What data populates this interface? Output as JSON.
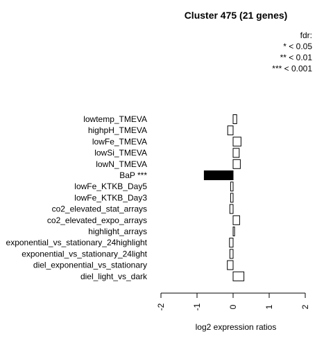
{
  "chart_data": {
    "type": "bar",
    "orientation": "horizontal",
    "title": "Cluster 475 (21 genes)",
    "xlabel": "log2 expression ratios",
    "xlim": [
      -2,
      2
    ],
    "xticks": [
      "-2",
      "-1",
      "0",
      "1",
      "2"
    ],
    "legend": {
      "title": "fdr:",
      "entries": [
        "* < 0.05",
        "** < 0.01",
        "*** < 0.001"
      ],
      "position": "top-right"
    },
    "categories": [
      "lowtemp_TMEVA",
      "highpH_TMEVA",
      "lowFe_TMEVA",
      "lowSi_TMEVA",
      "lowN_TMEVA",
      "BaP ***",
      "lowFe_KTKB_Day5",
      "lowFe_KTKB_Day3",
      "co2_elevated_stat_arrays",
      "co2_elevated_expo_arrays",
      "highlight_arrays",
      "exponential_vs_stationary_24highlight",
      "exponential_vs_stationary_24light",
      "diel_exponential_vs_stationary",
      "diel_light_vs_dark"
    ],
    "values": [
      0.1,
      -0.15,
      0.22,
      0.17,
      0.2,
      -0.8,
      -0.07,
      -0.07,
      -0.09,
      0.18,
      0.04,
      -0.1,
      -0.09,
      -0.16,
      0.3
    ],
    "significant": [
      false,
      false,
      false,
      false,
      false,
      true,
      false,
      false,
      false,
      false,
      false,
      false,
      false,
      false,
      false
    ],
    "colors": {
      "normal": "#ffffff",
      "significant": "#000000",
      "stroke": "#000000"
    }
  }
}
